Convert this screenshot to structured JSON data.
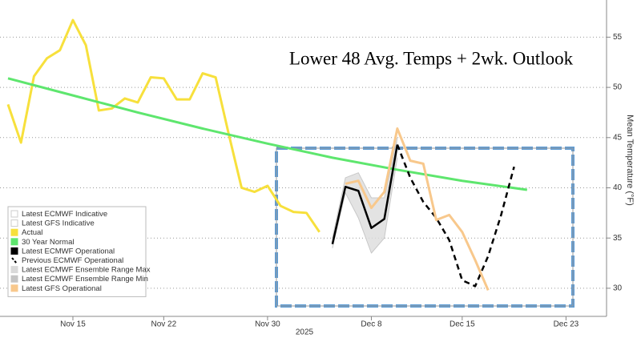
{
  "chart_data": {
    "type": "line",
    "title": "Lower 48 Avg. Temps + 2wk. Outlook",
    "y_label": "Mean Temperature (°F)",
    "year_label": "2025",
    "xlim": [
      "2025-11-10",
      "2025-12-26"
    ],
    "xticks": [
      {
        "value": "2025-11-15",
        "label": "Nov 15"
      },
      {
        "value": "2025-11-22",
        "label": "Nov 22"
      },
      {
        "value": "2025-11-30",
        "label": "Nov 30"
      },
      {
        "value": "2025-12-08",
        "label": "Dec 8"
      },
      {
        "value": "2025-12-15",
        "label": "Dec 15"
      },
      {
        "value": "2025-12-23",
        "label": "Dec 23"
      }
    ],
    "ylim": [
      27.2,
      58.7
    ],
    "yticks": [
      30,
      35,
      40,
      45,
      50,
      55
    ],
    "grid": true,
    "legend": "bottom-left",
    "series": [
      {
        "name": "Latest ECMWF Indicative",
        "color": "#ffffff",
        "x": [],
        "values": []
      },
      {
        "name": "Latest GFS Indicative",
        "color": "#ffffff",
        "x": [],
        "values": []
      },
      {
        "name": "Actual",
        "color": "#f7e03c",
        "x": [
          "2025-11-10",
          "2025-11-11",
          "2025-11-12",
          "2025-11-13",
          "2025-11-14",
          "2025-11-15",
          "2025-11-16",
          "2025-11-17",
          "2025-11-18",
          "2025-11-19",
          "2025-11-20",
          "2025-11-21",
          "2025-11-22",
          "2025-11-23",
          "2025-11-24",
          "2025-11-25",
          "2025-11-26",
          "2025-11-27",
          "2025-11-28",
          "2025-11-29",
          "2025-11-30",
          "2025-12-01",
          "2025-12-02",
          "2025-12-03",
          "2025-12-04"
        ],
        "values": [
          48.3,
          44.5,
          51.1,
          52.9,
          53.7,
          56.7,
          54.2,
          47.7,
          47.9,
          48.9,
          48.5,
          51.0,
          50.9,
          48.8,
          48.8,
          51.4,
          51.0,
          45.4,
          40.0,
          39.6,
          40.2,
          38.2,
          37.6,
          37.5,
          35.6
        ]
      },
      {
        "name": "30 Year Normal",
        "color": "#5ee66e",
        "x": [
          "2025-11-10",
          "2025-11-15",
          "2025-11-20",
          "2025-11-25",
          "2025-11-30",
          "2025-12-05",
          "2025-12-10",
          "2025-12-15",
          "2025-12-20"
        ],
        "values": [
          50.9,
          49.2,
          47.5,
          45.9,
          44.4,
          43.0,
          41.8,
          40.7,
          39.8
        ]
      },
      {
        "name": "Latest ECMWF Operational",
        "color": "#000000",
        "x": [
          "2025-12-05",
          "2025-12-06",
          "2025-12-07",
          "2025-12-08",
          "2025-12-09",
          "2025-12-10"
        ],
        "values": [
          34.4,
          40.1,
          39.7,
          36.0,
          36.9,
          44.3
        ]
      },
      {
        "name": "Previous ECMWF Operational",
        "color": "#000000",
        "dashed": true,
        "x": [
          "2025-12-10",
          "2025-12-11",
          "2025-12-12",
          "2025-12-13",
          "2025-12-14",
          "2025-12-15",
          "2025-12-16",
          "2025-12-17",
          "2025-12-18",
          "2025-12-19"
        ],
        "values": [
          44.3,
          41.0,
          38.6,
          37.0,
          34.8,
          30.8,
          30.2,
          33.2,
          37.3,
          42.1
        ]
      },
      {
        "name": "Latest ECMWF Ensemble Range Max",
        "color": "#d9d9d9",
        "band": true,
        "x": [
          "2025-12-05",
          "2025-12-06",
          "2025-12-07",
          "2025-12-08",
          "2025-12-09",
          "2025-12-10"
        ],
        "values": [
          35.0,
          41.0,
          41.5,
          39.0,
          39.0,
          45.0
        ]
      },
      {
        "name": "Latest ECMWF Ensemble Range Min",
        "color": "#c4c4c4",
        "band": true,
        "x": [
          "2025-12-05",
          "2025-12-06",
          "2025-12-07",
          "2025-12-08",
          "2025-12-09",
          "2025-12-10"
        ],
        "values": [
          34.0,
          39.5,
          37.0,
          33.5,
          35.0,
          43.0
        ]
      },
      {
        "name": "Latest GFS Operational",
        "color": "#f8c88c",
        "x": [
          "2025-12-06",
          "2025-12-07",
          "2025-12-08",
          "2025-12-09",
          "2025-12-10",
          "2025-12-11",
          "2025-12-12",
          "2025-12-13",
          "2025-12-14",
          "2025-12-15",
          "2025-12-16",
          "2025-12-17"
        ],
        "values": [
          40.4,
          40.7,
          38.0,
          39.6,
          45.9,
          42.7,
          42.4,
          36.8,
          37.3,
          35.6,
          32.8,
          29.8
        ]
      }
    ]
  }
}
